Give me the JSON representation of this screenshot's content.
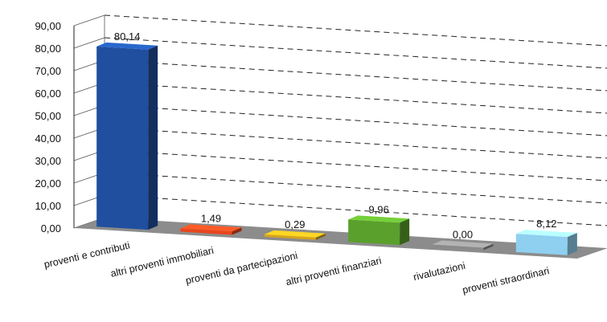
{
  "chart_data": {
    "type": "bar",
    "title": "",
    "xlabel": "",
    "ylabel": "",
    "ylim": [
      0,
      90
    ],
    "yticks": [
      "0,00",
      "10,00",
      "20,00",
      "30,00",
      "40,00",
      "50,00",
      "60,00",
      "70,00",
      "80,00",
      "90,00"
    ],
    "grid": true,
    "categories": [
      "proventi e contributi",
      "altri proventi immobiliari",
      "proventi da partecipazioni",
      "altri proventi finanziari",
      "rivalutazioni",
      "proventi straordinari"
    ],
    "values": [
      80.14,
      1.49,
      0.29,
      9.96,
      0.0,
      8.12
    ],
    "value_labels": [
      "80,14",
      "1,49",
      "0,29",
      "9,96",
      "0,00",
      "8,12"
    ],
    "colors": [
      "#1f4f9e",
      "#e8461e",
      "#d6a51c",
      "#5aa02c",
      "#8a8a8a",
      "#8fd0f0"
    ]
  }
}
